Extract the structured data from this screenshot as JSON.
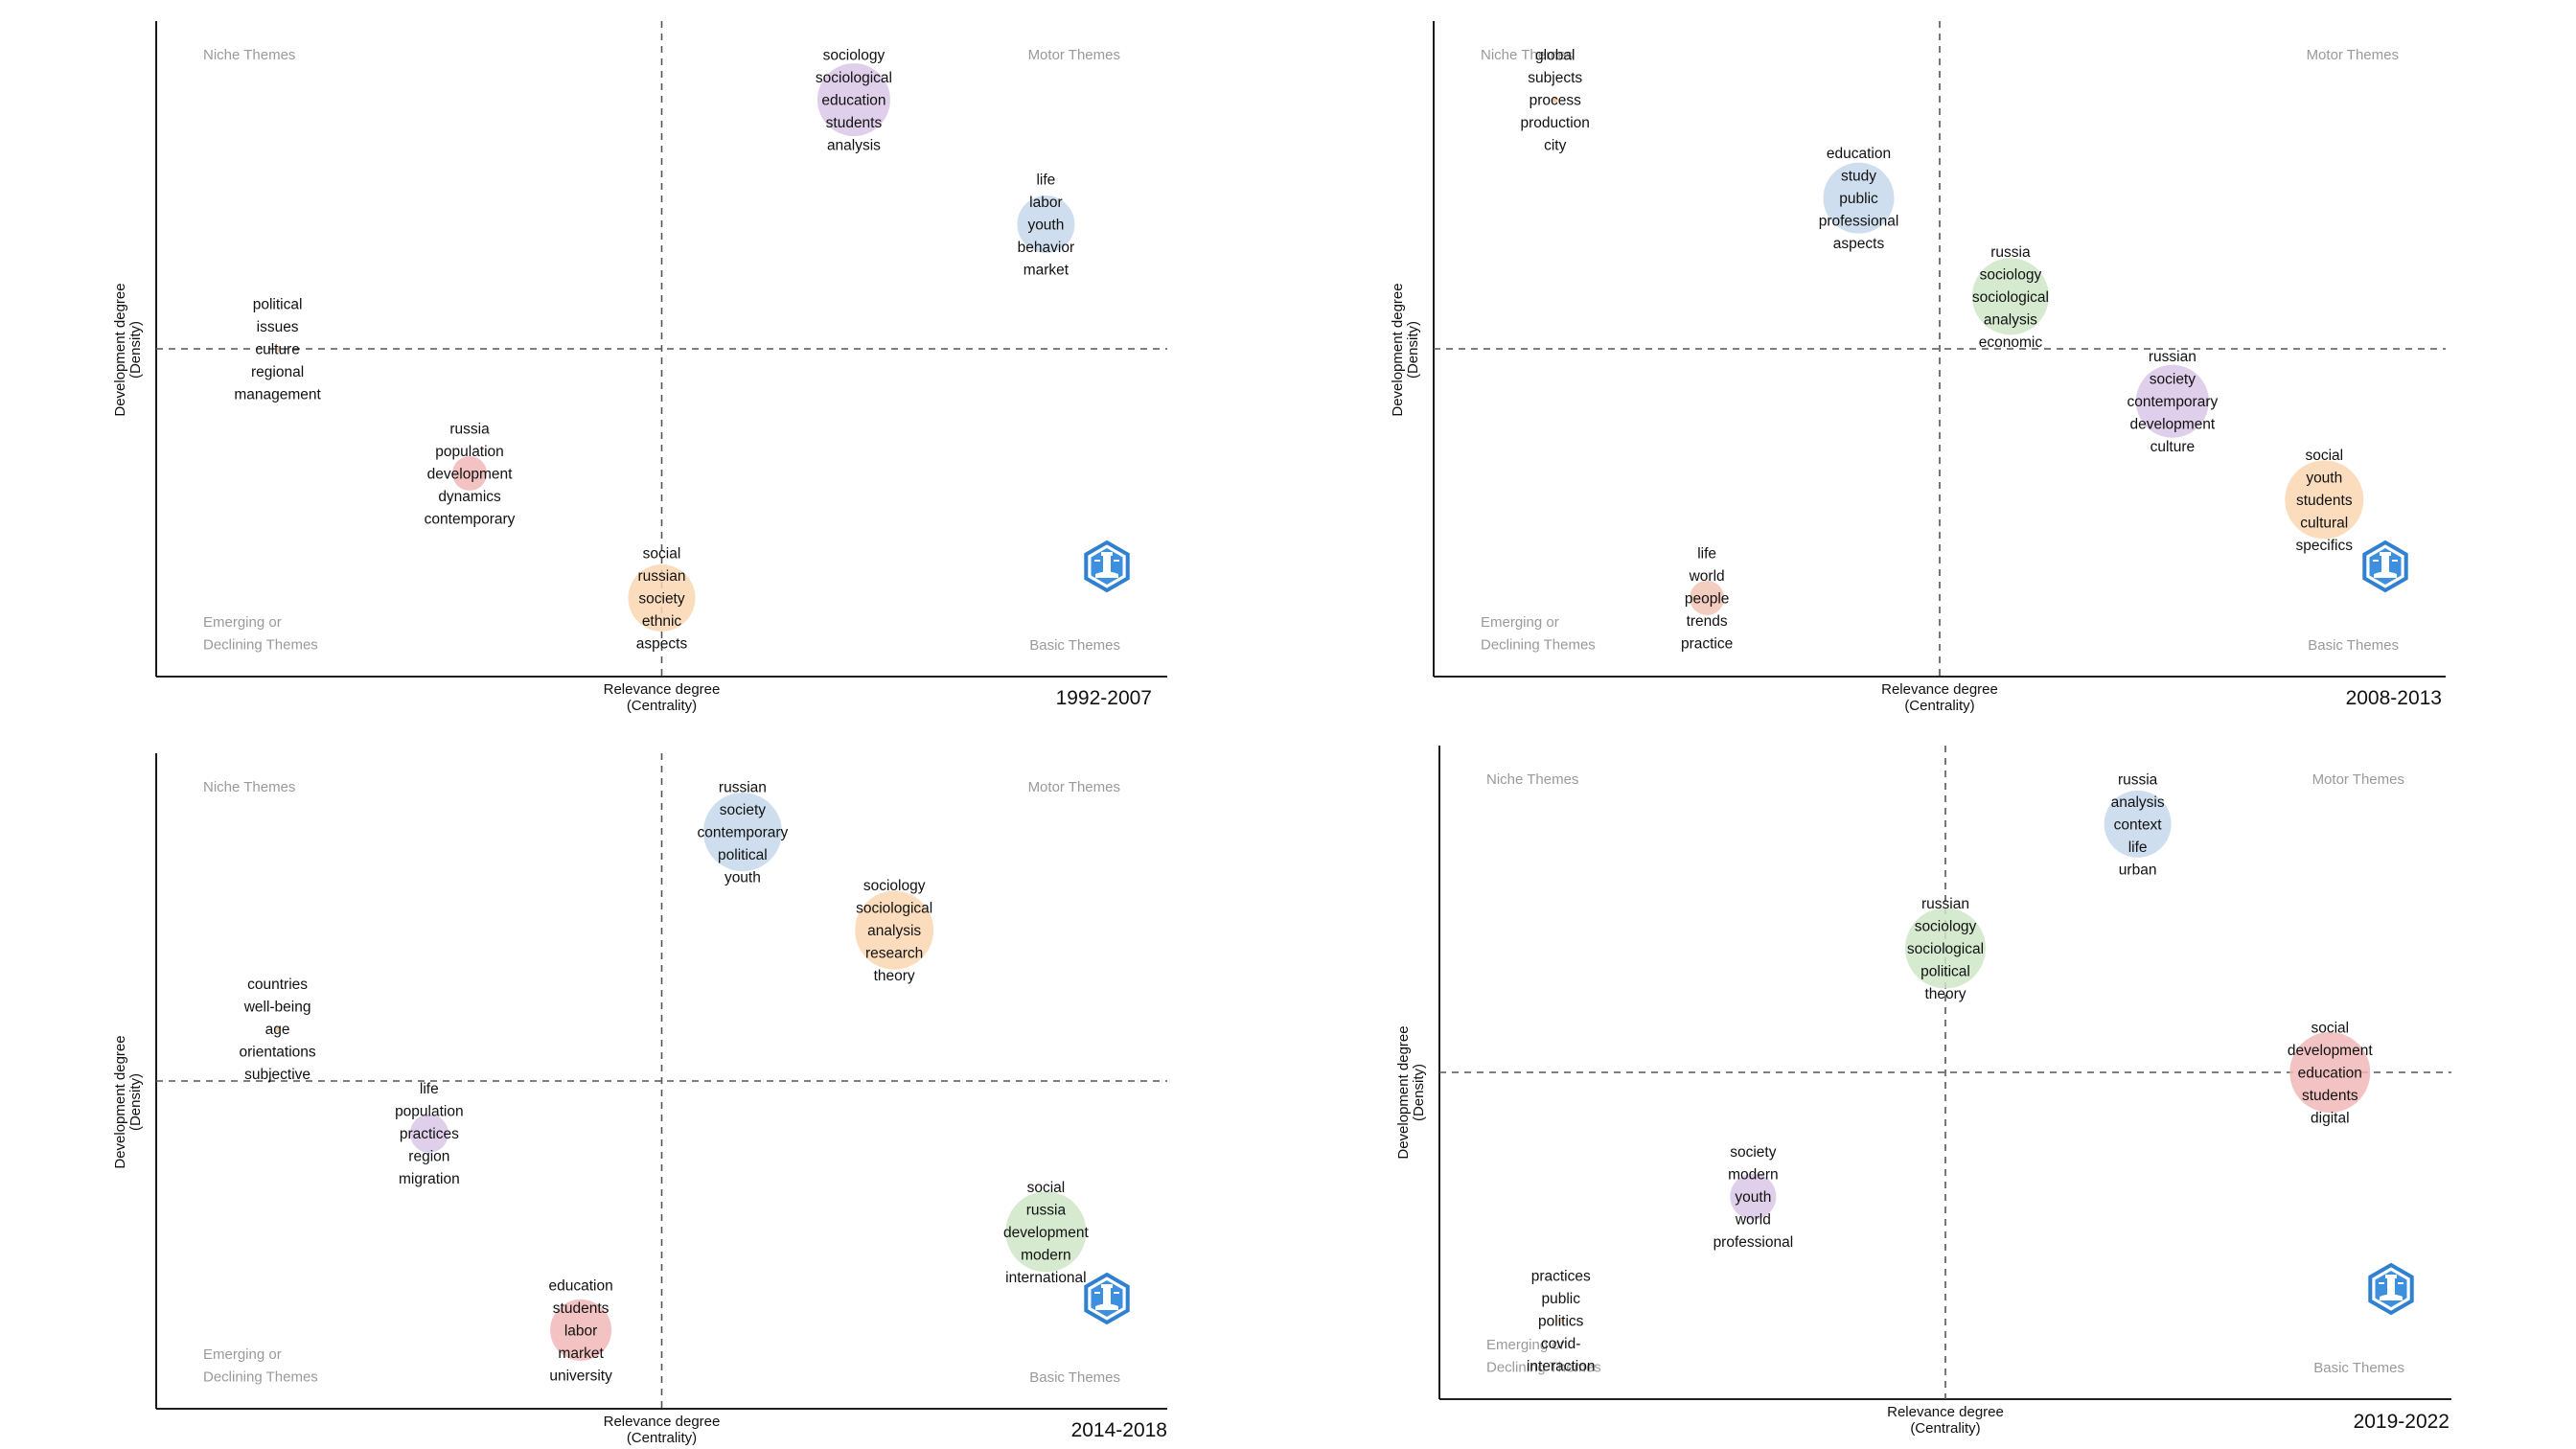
{
  "chart_data": [
    {
      "type": "scatter",
      "title": "1992-2007",
      "xlabel": "Relevance degree",
      "xlabel_sub": "(Centrality)",
      "ylabel": "Development degree",
      "ylabel_sub": "(Density)",
      "quadrant_labels": {
        "top_left": [
          "Niche Themes"
        ],
        "top_right": [
          "Motor Themes"
        ],
        "bottom_left": [
          "Emerging or",
          "Declining Themes"
        ],
        "bottom_right": [
          "Basic Themes"
        ]
      },
      "logo": "biblioshiny-logo",
      "clusters": [
        {
          "x": 0.69,
          "y": 0.88,
          "r": 38,
          "color": "#d9c7e6",
          "words": [
            "sociology",
            "sociological",
            "education",
            "students",
            "analysis"
          ]
        },
        {
          "x": 0.88,
          "y": 0.69,
          "r": 30,
          "color": "#c7d8ec",
          "words": [
            "life",
            "labor",
            "youth",
            "behavior",
            "market"
          ]
        },
        {
          "x": 0.12,
          "y": 0.5,
          "r": 0,
          "color": "#f4c9a0",
          "words": [
            "political",
            "issues",
            "culture",
            "regional",
            "management"
          ]
        },
        {
          "x": 0.31,
          "y": 0.31,
          "r": 18,
          "color": "#f1b9b9",
          "words": [
            "russia",
            "population",
            "development",
            "dynamics",
            "contemporary"
          ]
        },
        {
          "x": 0.5,
          "y": 0.12,
          "r": 35,
          "color": "#fad7b3",
          "words": [
            "social",
            "russian",
            "society",
            "ethnic",
            "aspects"
          ]
        }
      ]
    },
    {
      "type": "scatter",
      "title": "2008-2013",
      "xlabel": "Relevance degree",
      "xlabel_sub": "(Centrality)",
      "ylabel": "Development degree",
      "ylabel_sub": "(Density)",
      "quadrant_labels": {
        "top_left": [
          "Niche Themes"
        ],
        "top_right": [
          "Motor Themes"
        ],
        "bottom_left": [
          "Emerging or",
          "Declining Themes"
        ],
        "bottom_right": [
          "Basic Themes"
        ]
      },
      "logo": "biblioshiny-logo",
      "clusters": [
        {
          "x": 0.12,
          "y": 0.88,
          "r": 0,
          "color": "#f4c9a0",
          "words": [
            "global",
            "subjects",
            "process",
            "production",
            "city"
          ]
        },
        {
          "x": 0.42,
          "y": 0.73,
          "r": 37,
          "color": "#c7d8ec",
          "words": [
            "education",
            "study",
            "public",
            "professional",
            "aspects"
          ]
        },
        {
          "x": 0.57,
          "y": 0.58,
          "r": 40,
          "color": "#cfe6c8",
          "words": [
            "russia",
            "sociology",
            "sociological",
            "analysis",
            "economic"
          ]
        },
        {
          "x": 0.73,
          "y": 0.42,
          "r": 38,
          "color": "#d9c7e6",
          "words": [
            "russian",
            "society",
            "contemporary",
            "development",
            "culture"
          ]
        },
        {
          "x": 0.88,
          "y": 0.27,
          "r": 41,
          "color": "#fad7b3",
          "words": [
            "social",
            "youth",
            "students",
            "cultural",
            "specifics"
          ]
        },
        {
          "x": 0.27,
          "y": 0.12,
          "r": 18,
          "color": "#f1c4b5",
          "words": [
            "life",
            "world",
            "people",
            "trends",
            "practice"
          ]
        }
      ]
    },
    {
      "type": "scatter",
      "title": "2014-2018",
      "xlabel": "Relevance degree",
      "xlabel_sub": "(Centrality)",
      "ylabel": "Development degree",
      "ylabel_sub": "(Density)",
      "quadrant_labels": {
        "top_left": [
          "Niche Themes"
        ],
        "top_right": [
          "Motor Themes"
        ],
        "bottom_left": [
          "Emerging or",
          "Declining Themes"
        ],
        "bottom_right": [
          "Basic Themes"
        ]
      },
      "logo": "biblioshiny-logo",
      "clusters": [
        {
          "x": 0.58,
          "y": 0.88,
          "r": 41,
          "color": "#c7d8ec",
          "words": [
            "russian",
            "society",
            "contemporary",
            "political",
            "youth"
          ]
        },
        {
          "x": 0.73,
          "y": 0.73,
          "r": 41,
          "color": "#fad7b3",
          "words": [
            "sociology",
            "sociological",
            "analysis",
            "research",
            "theory"
          ]
        },
        {
          "x": 0.12,
          "y": 0.58,
          "r": 0,
          "color": "#f4c9a0",
          "words": [
            "countries",
            "well-being",
            "age",
            "orientations",
            "subjective"
          ]
        },
        {
          "x": 0.27,
          "y": 0.42,
          "r": 20,
          "color": "#d9c7e6",
          "words": [
            "life",
            "population",
            "practices",
            "region",
            "migration"
          ]
        },
        {
          "x": 0.88,
          "y": 0.27,
          "r": 42,
          "color": "#cfe6c8",
          "words": [
            "social",
            "russia",
            "development",
            "modern",
            "international"
          ]
        },
        {
          "x": 0.42,
          "y": 0.12,
          "r": 32,
          "color": "#f1b9b9",
          "words": [
            "education",
            "students",
            "labor",
            "market",
            "university"
          ]
        }
      ]
    },
    {
      "type": "scatter",
      "title": "2019-2022",
      "xlabel": "Relevance degree",
      "xlabel_sub": "(Centrality)",
      "ylabel": "Development degree",
      "ylabel_sub": "(Density)",
      "quadrant_labels": {
        "top_left": [
          "Niche Themes"
        ],
        "top_right": [
          "Motor Themes"
        ],
        "bottom_left": [
          "Emerging or",
          "Declining Themes"
        ],
        "bottom_right": [
          "Basic Themes"
        ]
      },
      "logo": "biblioshiny-logo",
      "clusters": [
        {
          "x": 0.69,
          "y": 0.88,
          "r": 35,
          "color": "#c7d8ec",
          "words": [
            "russia",
            "analysis",
            "context",
            "life",
            "urban"
          ]
        },
        {
          "x": 0.5,
          "y": 0.69,
          "r": 42,
          "color": "#cfe6c8",
          "words": [
            "russian",
            "sociology",
            "sociological",
            "political",
            "theory"
          ]
        },
        {
          "x": 0.88,
          "y": 0.5,
          "r": 42,
          "color": "#f1b9b9",
          "words": [
            "social",
            "development",
            "education",
            "students",
            "digital"
          ]
        },
        {
          "x": 0.31,
          "y": 0.31,
          "r": 24,
          "color": "#d9c7e6",
          "words": [
            "society",
            "modern",
            "youth",
            "world",
            "professional"
          ]
        },
        {
          "x": 0.12,
          "y": 0.12,
          "r": 0,
          "color": "#fad7b3",
          "words": [
            "practices",
            "public",
            "politics",
            "covid-",
            "interaction"
          ]
        }
      ]
    }
  ]
}
